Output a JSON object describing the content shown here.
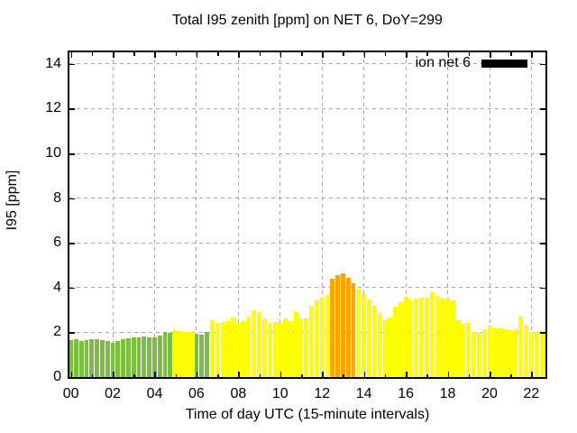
{
  "window": {
    "background": "#ffffff"
  },
  "legend": {
    "label": "ion net 6",
    "swatch_color": "#000000"
  },
  "colors": {
    "green": "#7cbe41",
    "yellow": "#ffff00",
    "orange": "#ffa500",
    "grid": "#a6a6a6",
    "axis": "#000000",
    "text": "#000000",
    "background": "#ffffff"
  },
  "chart_data": {
    "type": "bar",
    "title": "Total I95 zenith [ppm] on NET 6, DoY=299",
    "xlabel": "Time of day UTC (15-minute intervals)",
    "ylabel": "I95 [ppm]",
    "series_name": "ion net 6",
    "legend_position": "top-right",
    "grid": true,
    "ylim": [
      0,
      14
    ],
    "ytick_values": [
      0,
      2,
      4,
      6,
      8,
      10,
      12,
      14
    ],
    "ytick_labels": [
      "0",
      "2",
      "4",
      "6",
      "8",
      "10",
      "12",
      "14"
    ],
    "xtick_hours": [
      0,
      2,
      4,
      6,
      8,
      10,
      12,
      14,
      16,
      18,
      20,
      22
    ],
    "xtick_labels": [
      "00",
      "02",
      "04",
      "06",
      "08",
      "10",
      "12",
      "14",
      "16",
      "18",
      "20",
      "22"
    ],
    "interval_minutes": 15,
    "points": [
      [
        "00:00",
        1.65,
        "green"
      ],
      [
        "00:15",
        1.7,
        "green"
      ],
      [
        "00:30",
        1.62,
        "green"
      ],
      [
        "00:45",
        1.66,
        "green"
      ],
      [
        "01:00",
        1.7,
        "green"
      ],
      [
        "01:15",
        1.7,
        "green"
      ],
      [
        "01:30",
        1.66,
        "green"
      ],
      [
        "01:45",
        1.61,
        "green"
      ],
      [
        "02:00",
        1.55,
        "green"
      ],
      [
        "02:15",
        1.61,
        "green"
      ],
      [
        "02:30",
        1.7,
        "green"
      ],
      [
        "02:45",
        1.74,
        "green"
      ],
      [
        "03:00",
        1.78,
        "green"
      ],
      [
        "03:15",
        1.78,
        "green"
      ],
      [
        "03:30",
        1.82,
        "green"
      ],
      [
        "03:45",
        1.78,
        "green"
      ],
      [
        "04:00",
        1.78,
        "green"
      ],
      [
        "04:15",
        1.86,
        "green"
      ],
      [
        "04:30",
        2.0,
        "green"
      ],
      [
        "04:45",
        1.96,
        "green"
      ],
      [
        "05:00",
        2.08,
        "yellow"
      ],
      [
        "05:15",
        2.04,
        "yellow"
      ],
      [
        "05:30",
        2.0,
        "yellow"
      ],
      [
        "05:45",
        2.0,
        "yellow"
      ],
      [
        "06:00",
        1.95,
        "green"
      ],
      [
        "06:15",
        1.88,
        "green"
      ],
      [
        "06:30",
        2.0,
        "green"
      ],
      [
        "06:45",
        2.55,
        "yellow"
      ],
      [
        "07:00",
        2.4,
        "yellow"
      ],
      [
        "07:15",
        2.46,
        "yellow"
      ],
      [
        "07:30",
        2.5,
        "yellow"
      ],
      [
        "07:45",
        2.67,
        "yellow"
      ],
      [
        "08:00",
        2.42,
        "yellow"
      ],
      [
        "08:15",
        2.5,
        "yellow"
      ],
      [
        "08:30",
        2.7,
        "yellow"
      ],
      [
        "08:45",
        3.0,
        "yellow"
      ],
      [
        "09:00",
        2.91,
        "yellow"
      ],
      [
        "09:15",
        2.63,
        "yellow"
      ],
      [
        "09:30",
        2.4,
        "yellow"
      ],
      [
        "09:45",
        2.46,
        "yellow"
      ],
      [
        "10:00",
        2.46,
        "yellow"
      ],
      [
        "10:15",
        2.61,
        "yellow"
      ],
      [
        "10:30",
        2.52,
        "yellow"
      ],
      [
        "10:45",
        2.92,
        "yellow"
      ],
      [
        "11:00",
        2.64,
        "yellow"
      ],
      [
        "11:15",
        2.64,
        "yellow"
      ],
      [
        "11:30",
        3.18,
        "yellow"
      ],
      [
        "11:45",
        3.41,
        "yellow"
      ],
      [
        "12:00",
        3.56,
        "yellow"
      ],
      [
        "12:15",
        3.67,
        "yellow"
      ],
      [
        "12:30",
        4.4,
        "orange"
      ],
      [
        "12:45",
        4.55,
        "orange"
      ],
      [
        "13:00",
        4.62,
        "orange"
      ],
      [
        "13:15",
        4.45,
        "orange"
      ],
      [
        "13:30",
        4.2,
        "orange"
      ],
      [
        "13:45",
        3.95,
        "yellow"
      ],
      [
        "14:00",
        3.7,
        "yellow"
      ],
      [
        "14:15",
        3.46,
        "yellow"
      ],
      [
        "14:30",
        3.2,
        "yellow"
      ],
      [
        "14:45",
        2.87,
        "yellow"
      ],
      [
        "15:00",
        2.56,
        "yellow"
      ],
      [
        "15:15",
        2.67,
        "yellow"
      ],
      [
        "15:30",
        3.14,
        "yellow"
      ],
      [
        "15:45",
        3.35,
        "yellow"
      ],
      [
        "16:00",
        3.59,
        "yellow"
      ],
      [
        "16:15",
        3.48,
        "yellow"
      ],
      [
        "16:30",
        3.51,
        "yellow"
      ],
      [
        "16:45",
        3.56,
        "yellow"
      ],
      [
        "17:00",
        3.54,
        "yellow"
      ],
      [
        "17:15",
        3.78,
        "yellow"
      ],
      [
        "17:30",
        3.62,
        "yellow"
      ],
      [
        "17:45",
        3.52,
        "yellow"
      ],
      [
        "18:00",
        3.52,
        "yellow"
      ],
      [
        "18:15",
        3.41,
        "yellow"
      ],
      [
        "18:30",
        2.56,
        "yellow"
      ],
      [
        "18:45",
        2.38,
        "yellow"
      ],
      [
        "19:00",
        2.42,
        "yellow"
      ],
      [
        "19:15",
        2.01,
        "yellow"
      ],
      [
        "19:30",
        1.96,
        "yellow"
      ],
      [
        "19:45",
        2.14,
        "yellow"
      ],
      [
        "20:00",
        2.29,
        "yellow"
      ],
      [
        "20:15",
        2.19,
        "yellow"
      ],
      [
        "20:30",
        2.16,
        "yellow"
      ],
      [
        "20:45",
        2.14,
        "yellow"
      ],
      [
        "21:00",
        2.08,
        "yellow"
      ],
      [
        "21:15",
        2.14,
        "yellow"
      ],
      [
        "21:30",
        2.69,
        "yellow"
      ],
      [
        "21:45",
        2.31,
        "yellow"
      ],
      [
        "22:00",
        2.01,
        "yellow"
      ],
      [
        "22:15",
        2.01,
        "yellow"
      ],
      [
        "22:30",
        2.05,
        "yellow"
      ],
      [
        "22:45",
        2.01,
        "yellow"
      ]
    ]
  }
}
